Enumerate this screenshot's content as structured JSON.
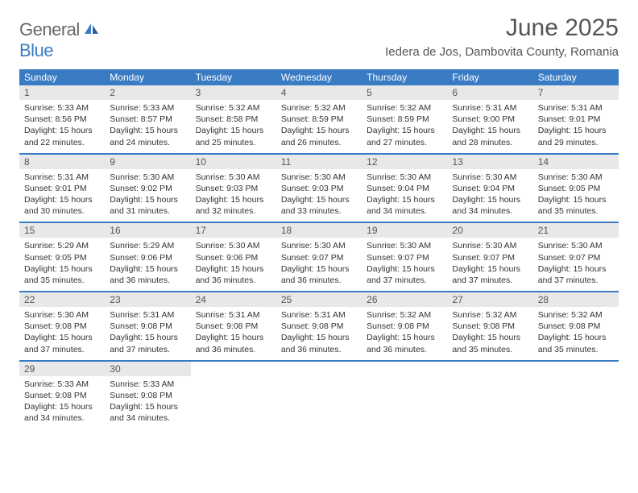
{
  "logo": {
    "general": "General",
    "blue": "Blue"
  },
  "title": "June 2025",
  "location": "Iedera de Jos, Dambovita County, Romania",
  "colors": {
    "accent": "#3a7cc4",
    "header_bg": "#e8e8e8",
    "text": "#333333",
    "title_text": "#555555",
    "bg": "#ffffff"
  },
  "typography": {
    "title_fontsize": 30,
    "location_fontsize": 15,
    "dow_fontsize": 12,
    "body_fontsize": 10.5
  },
  "days_of_week": [
    "Sunday",
    "Monday",
    "Tuesday",
    "Wednesday",
    "Thursday",
    "Friday",
    "Saturday"
  ],
  "weeks": [
    [
      {
        "n": "1",
        "sunrise": "5:33 AM",
        "sunset": "8:56 PM",
        "daylight": "15 hours and 22 minutes."
      },
      {
        "n": "2",
        "sunrise": "5:33 AM",
        "sunset": "8:57 PM",
        "daylight": "15 hours and 24 minutes."
      },
      {
        "n": "3",
        "sunrise": "5:32 AM",
        "sunset": "8:58 PM",
        "daylight": "15 hours and 25 minutes."
      },
      {
        "n": "4",
        "sunrise": "5:32 AM",
        "sunset": "8:59 PM",
        "daylight": "15 hours and 26 minutes."
      },
      {
        "n": "5",
        "sunrise": "5:32 AM",
        "sunset": "8:59 PM",
        "daylight": "15 hours and 27 minutes."
      },
      {
        "n": "6",
        "sunrise": "5:31 AM",
        "sunset": "9:00 PM",
        "daylight": "15 hours and 28 minutes."
      },
      {
        "n": "7",
        "sunrise": "5:31 AM",
        "sunset": "9:01 PM",
        "daylight": "15 hours and 29 minutes."
      }
    ],
    [
      {
        "n": "8",
        "sunrise": "5:31 AM",
        "sunset": "9:01 PM",
        "daylight": "15 hours and 30 minutes."
      },
      {
        "n": "9",
        "sunrise": "5:30 AM",
        "sunset": "9:02 PM",
        "daylight": "15 hours and 31 minutes."
      },
      {
        "n": "10",
        "sunrise": "5:30 AM",
        "sunset": "9:03 PM",
        "daylight": "15 hours and 32 minutes."
      },
      {
        "n": "11",
        "sunrise": "5:30 AM",
        "sunset": "9:03 PM",
        "daylight": "15 hours and 33 minutes."
      },
      {
        "n": "12",
        "sunrise": "5:30 AM",
        "sunset": "9:04 PM",
        "daylight": "15 hours and 34 minutes."
      },
      {
        "n": "13",
        "sunrise": "5:30 AM",
        "sunset": "9:04 PM",
        "daylight": "15 hours and 34 minutes."
      },
      {
        "n": "14",
        "sunrise": "5:30 AM",
        "sunset": "9:05 PM",
        "daylight": "15 hours and 35 minutes."
      }
    ],
    [
      {
        "n": "15",
        "sunrise": "5:29 AM",
        "sunset": "9:05 PM",
        "daylight": "15 hours and 35 minutes."
      },
      {
        "n": "16",
        "sunrise": "5:29 AM",
        "sunset": "9:06 PM",
        "daylight": "15 hours and 36 minutes."
      },
      {
        "n": "17",
        "sunrise": "5:30 AM",
        "sunset": "9:06 PM",
        "daylight": "15 hours and 36 minutes."
      },
      {
        "n": "18",
        "sunrise": "5:30 AM",
        "sunset": "9:07 PM",
        "daylight": "15 hours and 36 minutes."
      },
      {
        "n": "19",
        "sunrise": "5:30 AM",
        "sunset": "9:07 PM",
        "daylight": "15 hours and 37 minutes."
      },
      {
        "n": "20",
        "sunrise": "5:30 AM",
        "sunset": "9:07 PM",
        "daylight": "15 hours and 37 minutes."
      },
      {
        "n": "21",
        "sunrise": "5:30 AM",
        "sunset": "9:07 PM",
        "daylight": "15 hours and 37 minutes."
      }
    ],
    [
      {
        "n": "22",
        "sunrise": "5:30 AM",
        "sunset": "9:08 PM",
        "daylight": "15 hours and 37 minutes."
      },
      {
        "n": "23",
        "sunrise": "5:31 AM",
        "sunset": "9:08 PM",
        "daylight": "15 hours and 37 minutes."
      },
      {
        "n": "24",
        "sunrise": "5:31 AM",
        "sunset": "9:08 PM",
        "daylight": "15 hours and 36 minutes."
      },
      {
        "n": "25",
        "sunrise": "5:31 AM",
        "sunset": "9:08 PM",
        "daylight": "15 hours and 36 minutes."
      },
      {
        "n": "26",
        "sunrise": "5:32 AM",
        "sunset": "9:08 PM",
        "daylight": "15 hours and 36 minutes."
      },
      {
        "n": "27",
        "sunrise": "5:32 AM",
        "sunset": "9:08 PM",
        "daylight": "15 hours and 35 minutes."
      },
      {
        "n": "28",
        "sunrise": "5:32 AM",
        "sunset": "9:08 PM",
        "daylight": "15 hours and 35 minutes."
      }
    ],
    [
      {
        "n": "29",
        "sunrise": "5:33 AM",
        "sunset": "9:08 PM",
        "daylight": "15 hours and 34 minutes."
      },
      {
        "n": "30",
        "sunrise": "5:33 AM",
        "sunset": "9:08 PM",
        "daylight": "15 hours and 34 minutes."
      },
      null,
      null,
      null,
      null,
      null
    ]
  ],
  "labels": {
    "sunrise": "Sunrise: ",
    "sunset": "Sunset: ",
    "daylight": "Daylight: "
  }
}
